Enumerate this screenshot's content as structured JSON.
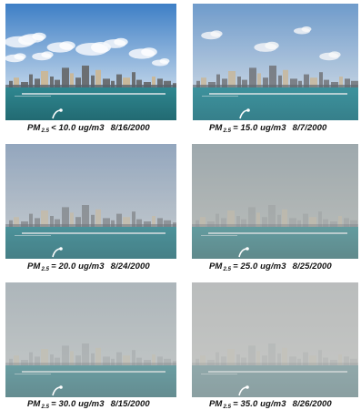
{
  "panels": [
    {
      "pm_label": "PM",
      "pm_subscript": "2.5",
      "value": "< 10.0 ug/m3",
      "date": "8/16/2000"
    },
    {
      "pm_label": "PM",
      "pm_subscript": "2.5",
      "value": "= 15.0 ug/m3",
      "date": "8/7/2000"
    },
    {
      "pm_label": "PM",
      "pm_subscript": "2.5",
      "value": "= 20.0 ug/m3",
      "date": "8/24/2000"
    },
    {
      "pm_label": "PM",
      "pm_subscript": "2.5",
      "value": "= 25.0 ug/m3",
      "date": "8/25/2000"
    },
    {
      "pm_label": "PM",
      "pm_subscript": "2.5",
      "value": "= 30.0 ug/m3",
      "date": "8/15/2000"
    },
    {
      "pm_label": "PM",
      "pm_subscript": "2.5",
      "value": "= 35.0 ug/m3",
      "date": "8/26/2000"
    }
  ],
  "colors": {
    "sky": [
      "#3e7fc6",
      "#6898cc",
      "#879fbc",
      "#8e9ca4",
      "#a1adb6",
      "#b2b5b7"
    ],
    "horizon": [
      "#bcd2e8",
      "#bfd1e4",
      "#b9c3cc",
      "#aeb3b2",
      "#bcc2c4",
      "#c2c3c1"
    ],
    "water": [
      "#2f8790",
      "#318e9a",
      "#2f8690",
      "#3a8a90",
      "#3c8890",
      "#6a9298"
    ],
    "water_deep": [
      "#226a72",
      "#2a7a86",
      "#286f78",
      "#356f74",
      "#336e76",
      "#5f8287"
    ]
  },
  "haze": [
    0.0,
    0.15,
    0.35,
    0.55,
    0.62,
    0.78
  ],
  "clouds": [
    true,
    true,
    false,
    false,
    false,
    false
  ]
}
